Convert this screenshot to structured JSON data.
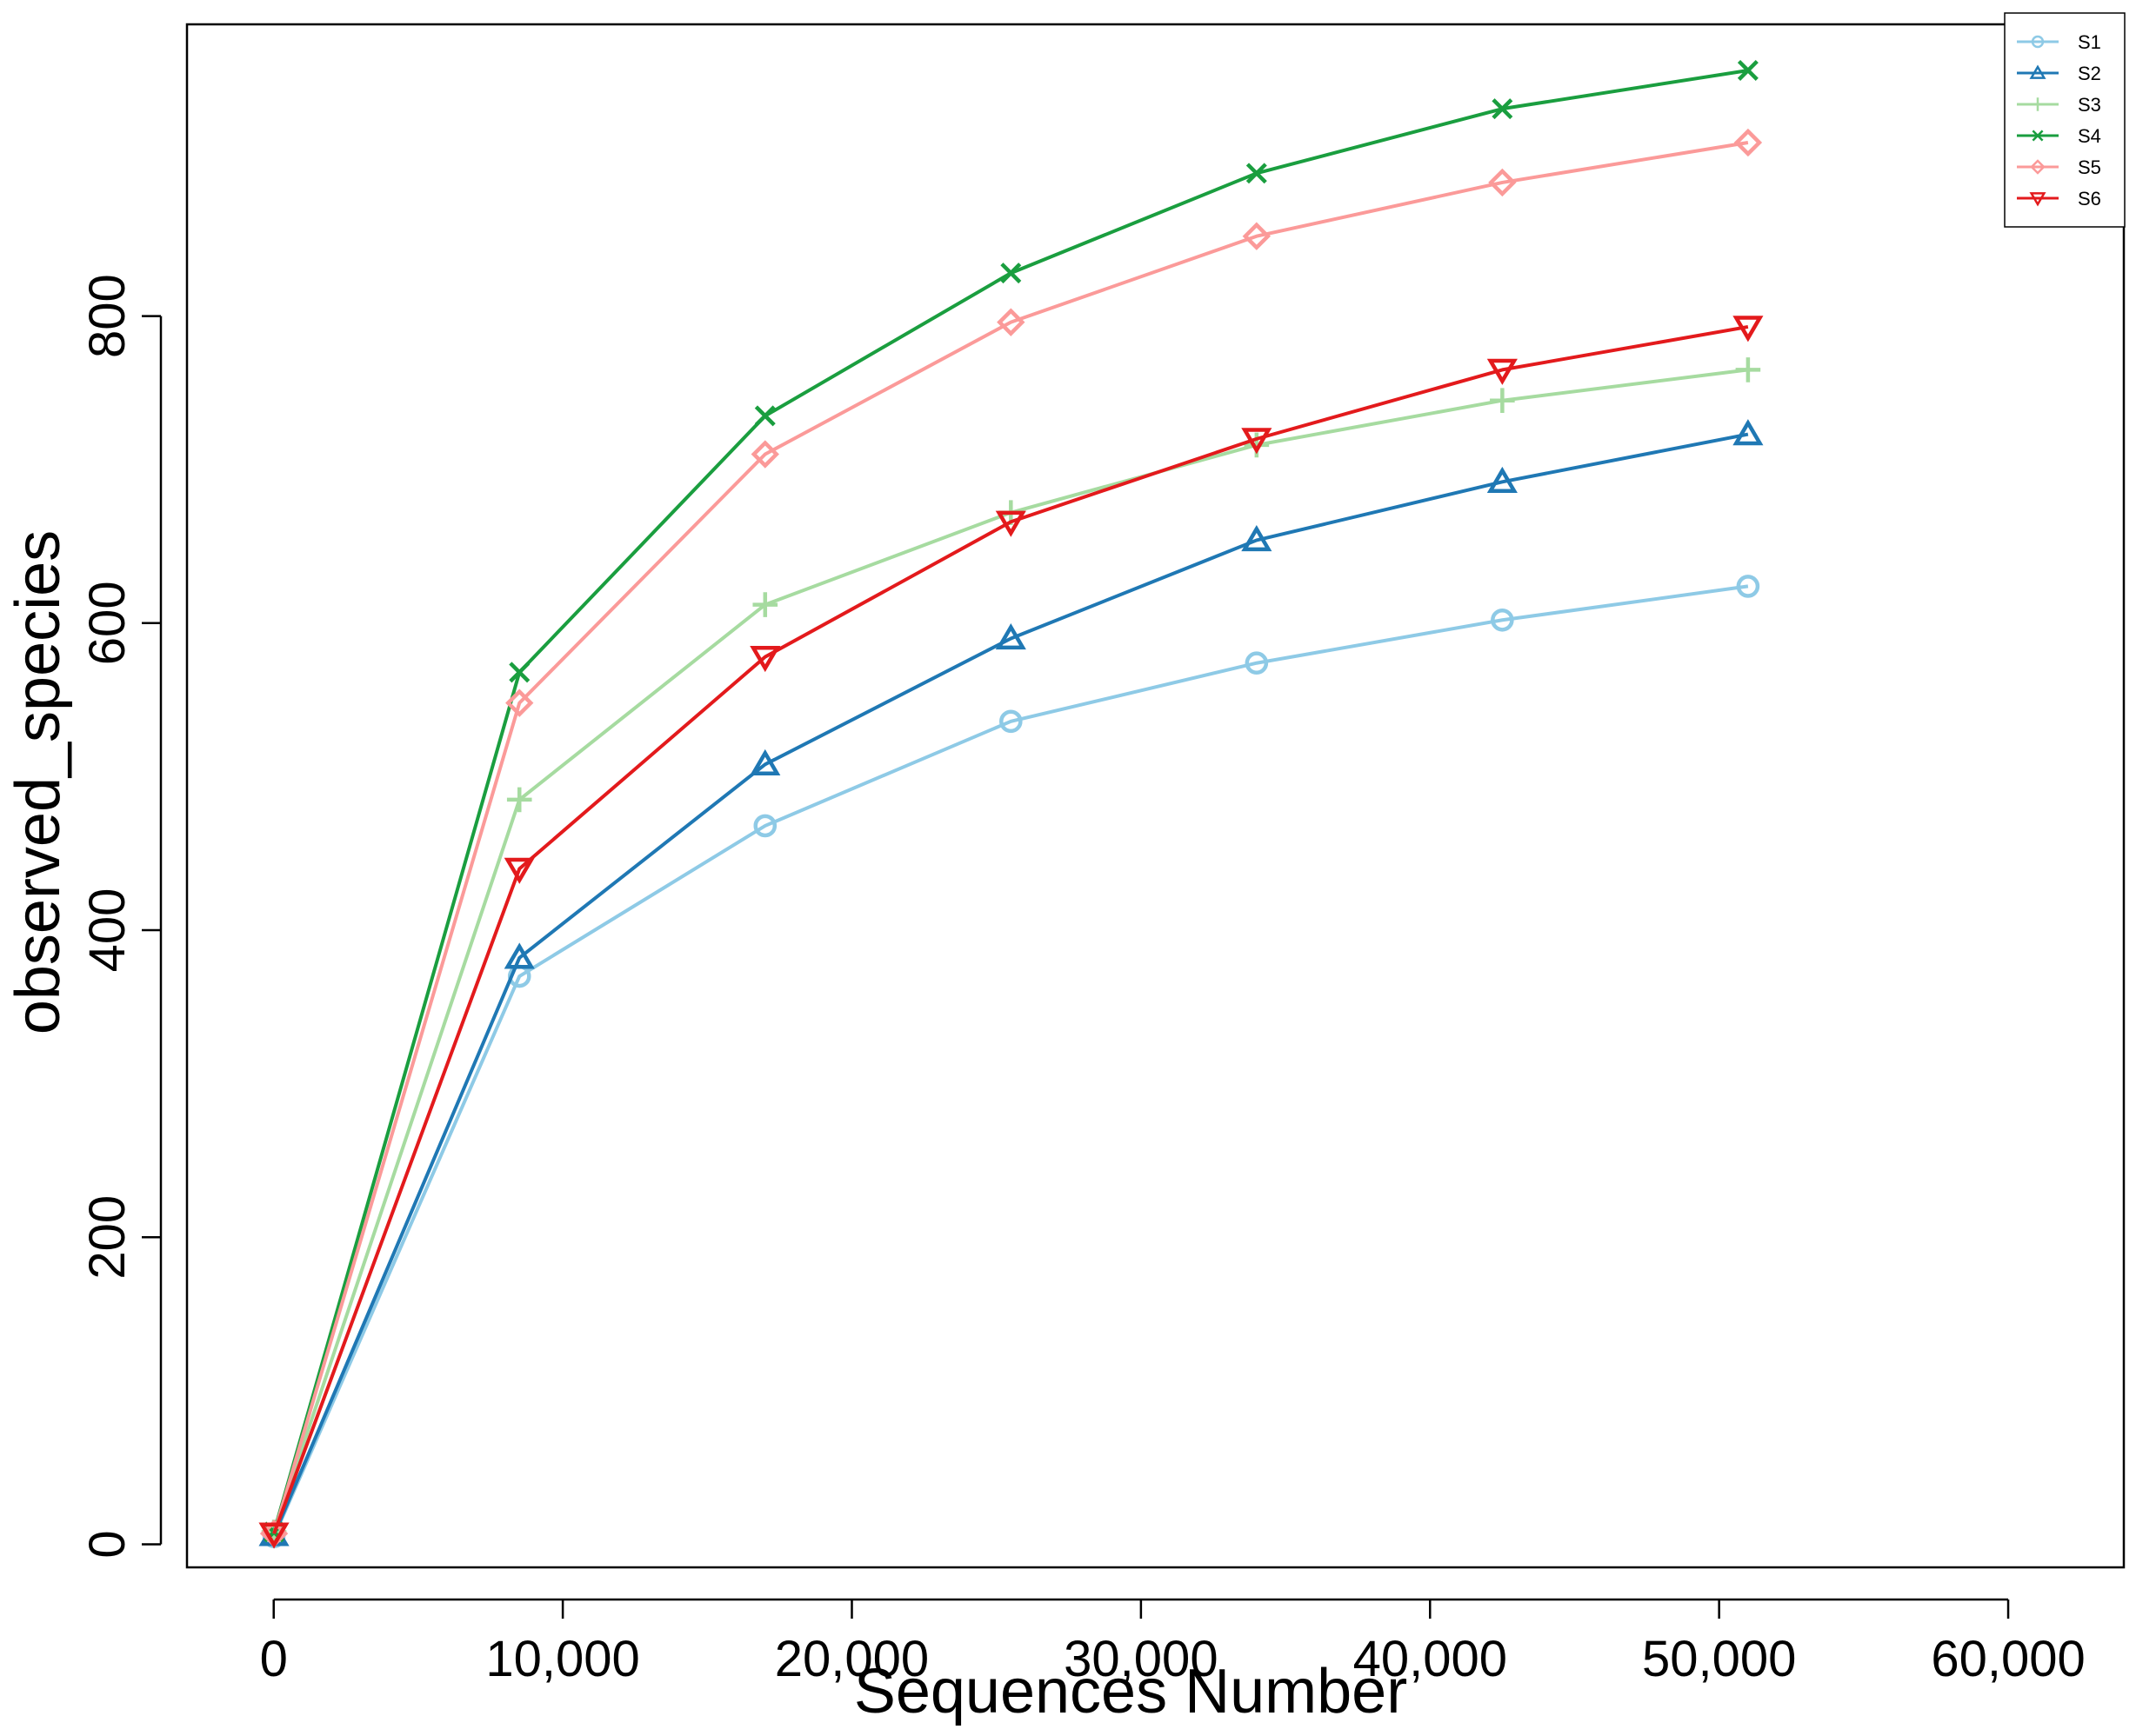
{
  "chart_data": {
    "type": "line",
    "title": "",
    "xlabel": "Sequences Number",
    "ylabel": "observed_species",
    "xlim": [
      -3000,
      64000
    ],
    "ylim": [
      -15,
      990
    ],
    "x_ticks": [
      0,
      10000,
      20000,
      30000,
      40000,
      50000,
      60000
    ],
    "x_tick_labels": [
      "0",
      "10,000",
      "20,000",
      "30,000",
      "40,000",
      "50,000",
      "60,000"
    ],
    "y_ticks": [
      0,
      200,
      400,
      600,
      800
    ],
    "y_tick_labels": [
      "0",
      "200",
      "400",
      "600",
      "800"
    ],
    "grid": false,
    "legend_position": "top-right",
    "x": [
      10,
      8500,
      17000,
      25500,
      34000,
      42500,
      51000
    ],
    "series": [
      {
        "name": "S1",
        "color": "#8ecae6",
        "marker": "circle",
        "values": [
          5,
          370,
          468,
          536,
          574,
          602,
          624
        ]
      },
      {
        "name": "S2",
        "color": "#1f78b4",
        "marker": "triangle-up",
        "values": [
          6,
          382,
          508,
          590,
          654,
          692,
          723
        ]
      },
      {
        "name": "S3",
        "color": "#a6dba0",
        "marker": "plus",
        "values": [
          8,
          485,
          612,
          672,
          716,
          745,
          765
        ]
      },
      {
        "name": "S4",
        "color": "#1a9e3f",
        "marker": "x",
        "values": [
          8,
          568,
          735,
          828,
          893,
          935,
          960
        ]
      },
      {
        "name": "S5",
        "color": "#fb9a99",
        "marker": "diamond",
        "values": [
          7,
          548,
          710,
          796,
          852,
          887,
          913
        ]
      },
      {
        "name": "S6",
        "color": "#e31a1c",
        "marker": "triangle-down",
        "values": [
          7,
          440,
          578,
          666,
          720,
          765,
          793
        ]
      }
    ]
  }
}
